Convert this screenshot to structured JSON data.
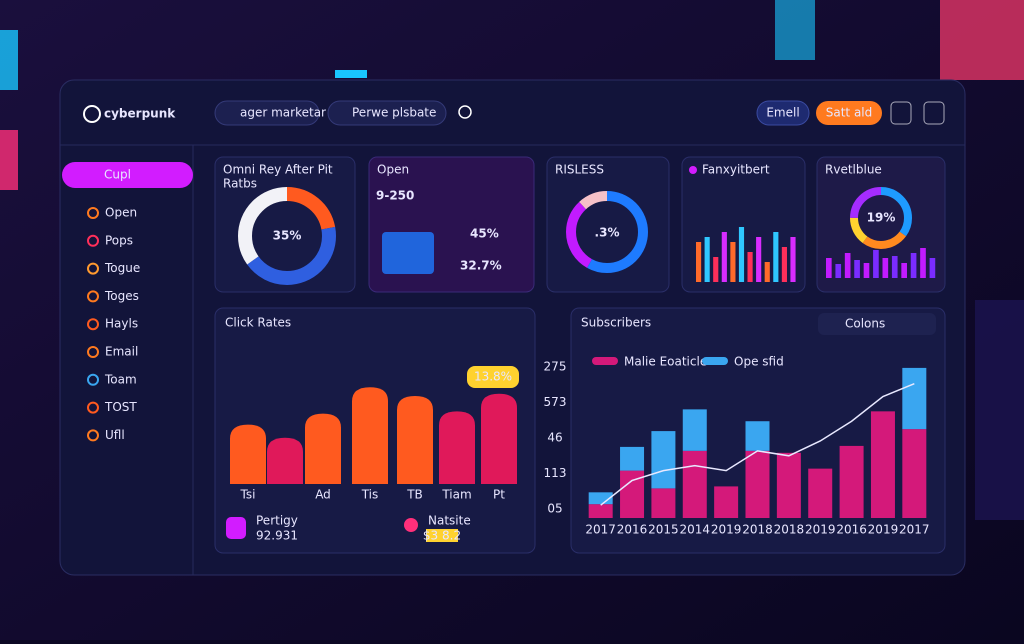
{
  "header": {
    "brand": "cyberpunk",
    "tabs": [
      "ager marketar",
      "Perwe plsbate"
    ],
    "buttons": [
      "Emell",
      "Satt ald"
    ]
  },
  "sidebar": {
    "active": "Cupl",
    "items": [
      "Open",
      "Pops",
      "Togue",
      "Toges",
      "Hayls",
      "Email",
      "Toam",
      "TOST",
      "Ufll"
    ]
  },
  "cards": [
    {
      "title": "Omni Rey After Pit",
      "subtitle": "Ratbs",
      "label": "35%",
      "segments": [
        {
          "value": 22,
          "color": "#ff5a1f"
        },
        {
          "value": 43,
          "color": "#2f5fe0"
        },
        {
          "value": 35,
          "color": "#f2f2f7"
        }
      ]
    },
    {
      "title": "Open",
      "headline": "9-250",
      "stats": [
        "45%",
        "32.7%"
      ]
    },
    {
      "title": "RISLESS",
      "label": ".3%",
      "segments": [
        {
          "value": 58,
          "color": "#1e7bff"
        },
        {
          "value": 30,
          "color": "#c21bff"
        },
        {
          "value": 12,
          "color": "#f6c1c8"
        }
      ]
    },
    {
      "title": "Fanxyitbert",
      "bars": [
        40,
        45,
        25,
        50,
        40,
        55,
        30,
        45,
        20,
        50,
        35,
        45
      ],
      "colors": [
        "#ff6a2a",
        "#2fc7ff",
        "#ff2f5a",
        "#d82cff"
      ]
    },
    {
      "title": "Rvetlblue",
      "label": "19%",
      "segments": [
        {
          "value": 35,
          "color": "#1e9bff"
        },
        {
          "value": 25,
          "color": "#ff8a1f"
        },
        {
          "value": 15,
          "color": "#ffd22f"
        },
        {
          "value": 25,
          "color": "#a52cff"
        }
      ],
      "bars": [
        20,
        14,
        25,
        18,
        15,
        28,
        20,
        22,
        15,
        25,
        30,
        20
      ],
      "colors": [
        "#c21bff",
        "#7a2cff"
      ]
    }
  ],
  "click_rates": {
    "type": "bar",
    "title": "Click Rates",
    "badge": "13.8%",
    "categories": [
      "Tsi",
      null,
      "Ad",
      "Tis",
      "TB",
      "Tiam",
      "Pt"
    ],
    "values": [
      54,
      42,
      64,
      88,
      80,
      66,
      82
    ],
    "colors": [
      "#ff5a1f",
      "#e0195a",
      "#ff5a1f",
      "#ff5a1f",
      "#ff5a1f",
      "#e0195a",
      "#e0195a"
    ],
    "ylim": [
      0,
      120
    ],
    "footer": [
      {
        "name": "Pertigy",
        "value": "92.931"
      },
      {
        "name": "Natsite",
        "value": "$3 8.2"
      }
    ]
  },
  "subscribers": {
    "type": "stacked-bar",
    "title": "Subscribers",
    "dropdown": "Colons",
    "y_labels": [
      "275",
      "573",
      "46",
      "113",
      "05"
    ],
    "categories": [
      "2017",
      "2016",
      "2015",
      "2014",
      "2019",
      "2018",
      "2018",
      "2019",
      "2016",
      "2019",
      "2017"
    ],
    "series": [
      {
        "name": "Malie Eoaticle",
        "color": "#d4197a",
        "values": [
          14,
          48,
          30,
          68,
          32,
          68,
          66,
          50,
          73,
          108,
          90
        ]
      },
      {
        "name": "Ope sfid",
        "color": "#3aa6f0",
        "values": [
          12,
          24,
          58,
          42,
          0,
          30,
          0,
          0,
          0,
          0,
          62
        ]
      }
    ],
    "line": {
      "color": "#e8e8ff",
      "values": [
        13,
        38,
        48,
        53,
        48,
        68,
        63,
        78,
        98,
        123,
        136
      ]
    },
    "ylim": [
      0,
      160
    ]
  }
}
